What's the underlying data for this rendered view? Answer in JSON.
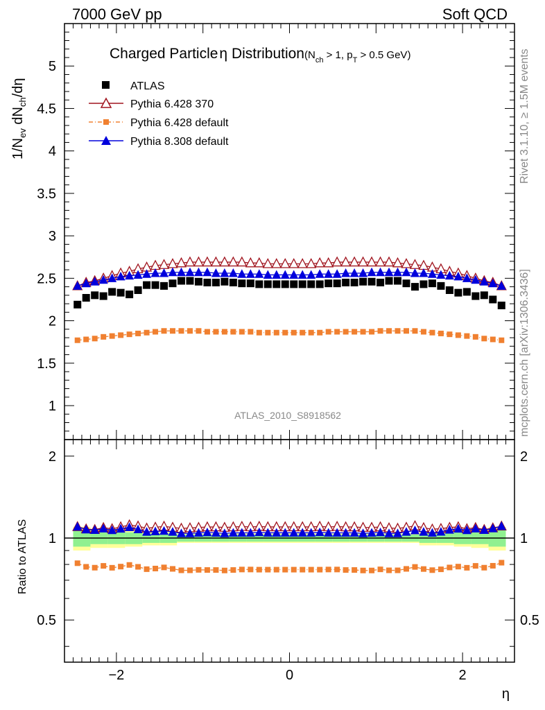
{
  "header": {
    "left": "7000 GeV pp",
    "right": "Soft QCD"
  },
  "side_labels": {
    "rivet": "Rivet 3.1.10, ≥ 1.5M events",
    "mcplots": "mcplots.cern.ch [arXiv:1306.3436]"
  },
  "chart_data": {
    "type": "scatter",
    "title_main": "Charged Particle",
    "title_eta": "η",
    "title_rest": " Distribution",
    "title_cut": "(N",
    "title_cut_sub": "ch",
    "title_cut2": " > 1, p",
    "title_cut_sub2": "T",
    "title_cut3": " > 0.5 GeV)",
    "ylabel_parts": [
      "1/N",
      "ev",
      " dN",
      "ch",
      "/dη"
    ],
    "ratio_ylabel": "Ratio to ATLAS",
    "xlabel": "η",
    "watermark": "ATLAS_2010_S8918562",
    "xlim": [
      -2.6,
      2.6
    ],
    "ylim_main": [
      0.6,
      5.5
    ],
    "ylim_ratio": [
      0.35,
      2.3
    ],
    "main_yticks": [
      {
        "v": 1,
        "label": "1"
      },
      {
        "v": 1.5,
        "label": "1.5"
      },
      {
        "v": 2,
        "label": "2"
      },
      {
        "v": 2.5,
        "label": "2.5"
      },
      {
        "v": 3,
        "label": "3"
      },
      {
        "v": 3.5,
        "label": "3.5"
      },
      {
        "v": 4,
        "label": "4"
      },
      {
        "v": 4.5,
        "label": "4.5"
      },
      {
        "v": 5,
        "label": "5"
      }
    ],
    "ratio_yticks": [
      {
        "v": 0.5,
        "label": "0.5"
      },
      {
        "v": 1,
        "label": "1"
      },
      {
        "v": 2,
        "label": "2"
      }
    ],
    "xticks": [
      {
        "v": -2,
        "label": "−2"
      },
      {
        "v": 0,
        "label": "0"
      },
      {
        "v": 2,
        "label": "2"
      }
    ],
    "legend_position": "top-left",
    "x": [
      -2.45,
      -2.35,
      -2.25,
      -2.15,
      -2.05,
      -1.95,
      -1.85,
      -1.75,
      -1.65,
      -1.55,
      -1.45,
      -1.35,
      -1.25,
      -1.15,
      -1.05,
      -0.95,
      -0.85,
      -0.75,
      -0.65,
      -0.55,
      -0.45,
      -0.35,
      -0.25,
      -0.15,
      -0.05,
      0.05,
      0.15,
      0.25,
      0.35,
      0.45,
      0.55,
      0.65,
      0.75,
      0.85,
      0.95,
      1.05,
      1.15,
      1.25,
      1.35,
      1.45,
      1.55,
      1.65,
      1.75,
      1.85,
      1.95,
      2.05,
      2.15,
      2.25,
      2.35,
      2.45
    ],
    "series": [
      {
        "name": "ATLAS",
        "color": "#000000",
        "marker": "square",
        "values": [
          2.19,
          2.27,
          2.3,
          2.29,
          2.34,
          2.33,
          2.31,
          2.36,
          2.42,
          2.42,
          2.41,
          2.44,
          2.47,
          2.47,
          2.46,
          2.45,
          2.45,
          2.46,
          2.45,
          2.44,
          2.44,
          2.43,
          2.43,
          2.43,
          2.43,
          2.43,
          2.43,
          2.43,
          2.43,
          2.44,
          2.44,
          2.45,
          2.45,
          2.46,
          2.46,
          2.45,
          2.47,
          2.47,
          2.44,
          2.4,
          2.43,
          2.44,
          2.41,
          2.36,
          2.33,
          2.34,
          2.29,
          2.3,
          2.25,
          2.18
        ]
      },
      {
        "name": "Pythia 6.428 370",
        "color": "#a0141e",
        "marker": "open-triangle",
        "values": [
          2.41,
          2.45,
          2.47,
          2.5,
          2.53,
          2.56,
          2.58,
          2.61,
          2.63,
          2.65,
          2.66,
          2.67,
          2.68,
          2.69,
          2.69,
          2.69,
          2.69,
          2.69,
          2.69,
          2.69,
          2.68,
          2.68,
          2.67,
          2.67,
          2.67,
          2.67,
          2.67,
          2.67,
          2.68,
          2.68,
          2.69,
          2.69,
          2.69,
          2.69,
          2.69,
          2.69,
          2.69,
          2.68,
          2.67,
          2.66,
          2.65,
          2.63,
          2.61,
          2.58,
          2.56,
          2.53,
          2.5,
          2.47,
          2.45,
          2.41
        ]
      },
      {
        "name": "Pythia 6.428 default",
        "color": "#f08030",
        "marker": "small-square",
        "values": [
          1.77,
          1.78,
          1.79,
          1.81,
          1.82,
          1.83,
          1.84,
          1.85,
          1.86,
          1.87,
          1.88,
          1.88,
          1.88,
          1.88,
          1.88,
          1.87,
          1.87,
          1.87,
          1.87,
          1.87,
          1.87,
          1.86,
          1.86,
          1.86,
          1.86,
          1.86,
          1.86,
          1.86,
          1.86,
          1.87,
          1.87,
          1.87,
          1.87,
          1.87,
          1.87,
          1.88,
          1.88,
          1.88,
          1.88,
          1.88,
          1.87,
          1.86,
          1.85,
          1.84,
          1.83,
          1.82,
          1.81,
          1.79,
          1.78,
          1.77
        ]
      },
      {
        "name": "Pythia 8.308 default",
        "color": "#0000dc",
        "marker": "filled-triangle",
        "values": [
          2.41,
          2.44,
          2.46,
          2.48,
          2.5,
          2.52,
          2.53,
          2.54,
          2.55,
          2.56,
          2.56,
          2.57,
          2.57,
          2.57,
          2.57,
          2.57,
          2.56,
          2.56,
          2.56,
          2.55,
          2.55,
          2.55,
          2.54,
          2.54,
          2.54,
          2.54,
          2.54,
          2.54,
          2.55,
          2.55,
          2.55,
          2.56,
          2.56,
          2.56,
          2.57,
          2.57,
          2.57,
          2.57,
          2.57,
          2.56,
          2.56,
          2.55,
          2.54,
          2.53,
          2.52,
          2.5,
          2.48,
          2.46,
          2.44,
          2.41
        ]
      }
    ],
    "ratio_band_colors": {
      "inner": "#90f090",
      "outer": "#ffff99"
    },
    "ratio_band": {
      "x_edges": [
        -2.5,
        -2.3,
        -2.1,
        -1.9,
        -1.7,
        -1.5,
        -1.3,
        -1.1,
        -0.9,
        -0.7,
        -0.5,
        -0.3,
        -0.1,
        0.1,
        0.3,
        0.5,
        0.7,
        0.9,
        1.1,
        1.3,
        1.5,
        1.7,
        1.9,
        2.1,
        2.3,
        2.5
      ],
      "inner": [
        0.07,
        0.05,
        0.05,
        0.05,
        0.04,
        0.04,
        0.03,
        0.03,
        0.03,
        0.03,
        0.03,
        0.03,
        0.03,
        0.03,
        0.03,
        0.03,
        0.03,
        0.03,
        0.03,
        0.03,
        0.04,
        0.04,
        0.05,
        0.05,
        0.07
      ],
      "outer": [
        0.1,
        0.08,
        0.08,
        0.07,
        0.06,
        0.06,
        0.04,
        0.04,
        0.04,
        0.04,
        0.04,
        0.04,
        0.04,
        0.04,
        0.04,
        0.04,
        0.04,
        0.04,
        0.04,
        0.04,
        0.06,
        0.06,
        0.07,
        0.08,
        0.1
      ]
    }
  }
}
